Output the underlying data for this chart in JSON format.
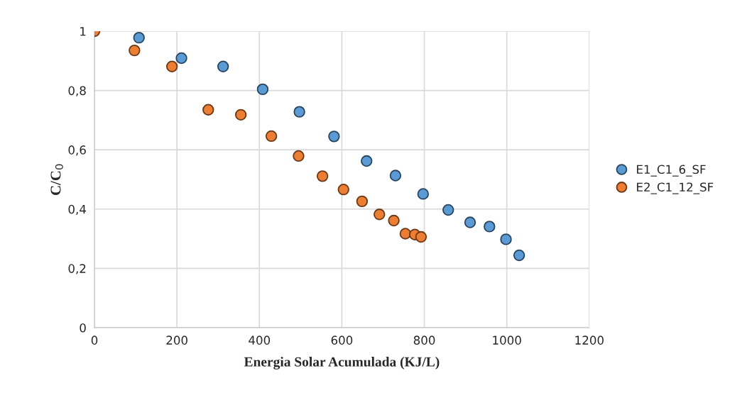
{
  "chart_data": {
    "type": "scatter",
    "xlabel": "Energia Solar Acumulada (KJ/L)",
    "ylabel": "C/C$_{0}$",
    "xlim": [
      0,
      1200
    ],
    "xticks": [
      0,
      200,
      400,
      600,
      800,
      1000,
      1200
    ],
    "ylim": [
      0,
      1
    ],
    "yticks": [
      0,
      {
        "value": 0.2,
        "label": "0,2"
      },
      {
        "value": 0.4,
        "label": "0,4"
      },
      {
        "value": 0.6,
        "label": "0,6"
      },
      {
        "value": 0.8,
        "label": "0,8"
      },
      1
    ],
    "grid": true,
    "legend": "right",
    "marker": "circle",
    "series": [
      {
        "name": "E1_C1_6_SF",
        "color": "#5b9bd5",
        "x": [
          108,
          211,
          312,
          408,
          497,
          581,
          660,
          730,
          797,
          858,
          911,
          958,
          998,
          1030
        ],
        "values": [
          0.978,
          0.909,
          0.881,
          0.804,
          0.728,
          0.645,
          0.562,
          0.513,
          0.451,
          0.397,
          0.355,
          0.341,
          0.298,
          0.244
        ]
      },
      {
        "name": "E2_C1_12_SF",
        "color": "#ed7d31",
        "x": [
          0,
          97,
          188,
          276,
          355,
          429,
          495,
          553,
          604,
          649,
          691,
          726,
          754,
          777,
          792
        ],
        "values": [
          1,
          0.935,
          0.881,
          0.735,
          0.718,
          0.646,
          0.579,
          0.511,
          0.466,
          0.426,
          0.382,
          0.361,
          0.317,
          0.314,
          0.306
        ]
      }
    ]
  }
}
